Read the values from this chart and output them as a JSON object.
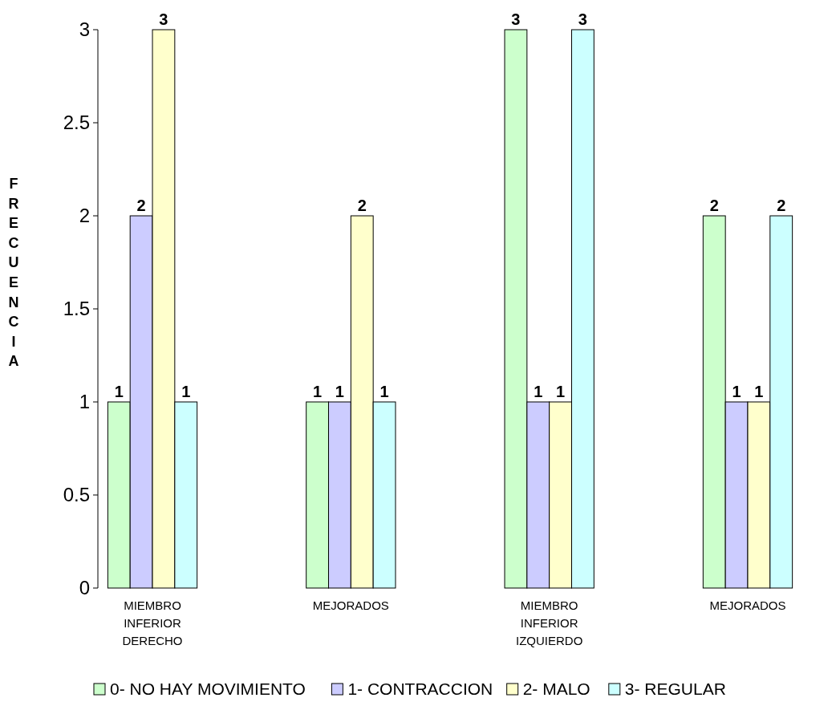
{
  "chart_data": {
    "type": "bar",
    "ylabel": "FRECUENCIA",
    "categories": [
      "MIEMBRO INFERIOR DERECHO",
      "MEJORADOS",
      "MIEMBRO INFERIOR IZQUIERDO",
      "MEJORADOS"
    ],
    "series": [
      {
        "name": "0- NO HAY MOVIMIENTO",
        "color": "#ccffcc",
        "values": [
          1,
          1,
          3,
          2
        ]
      },
      {
        "name": "1- CONTRACCION",
        "color": "#ccccff",
        "values": [
          2,
          1,
          1,
          1
        ]
      },
      {
        "name": "2- MALO",
        "color": "#ffffcc",
        "values": [
          3,
          2,
          1,
          1
        ]
      },
      {
        "name": "3- REGULAR",
        "color": "#ccffff",
        "values": [
          1,
          1,
          3,
          2
        ]
      }
    ],
    "ylim": [
      0,
      3
    ],
    "yticks": [
      0,
      0.5,
      1,
      1.5,
      2,
      2.5,
      3
    ],
    "data_labels": true,
    "legend": "bottom",
    "grid": false
  }
}
